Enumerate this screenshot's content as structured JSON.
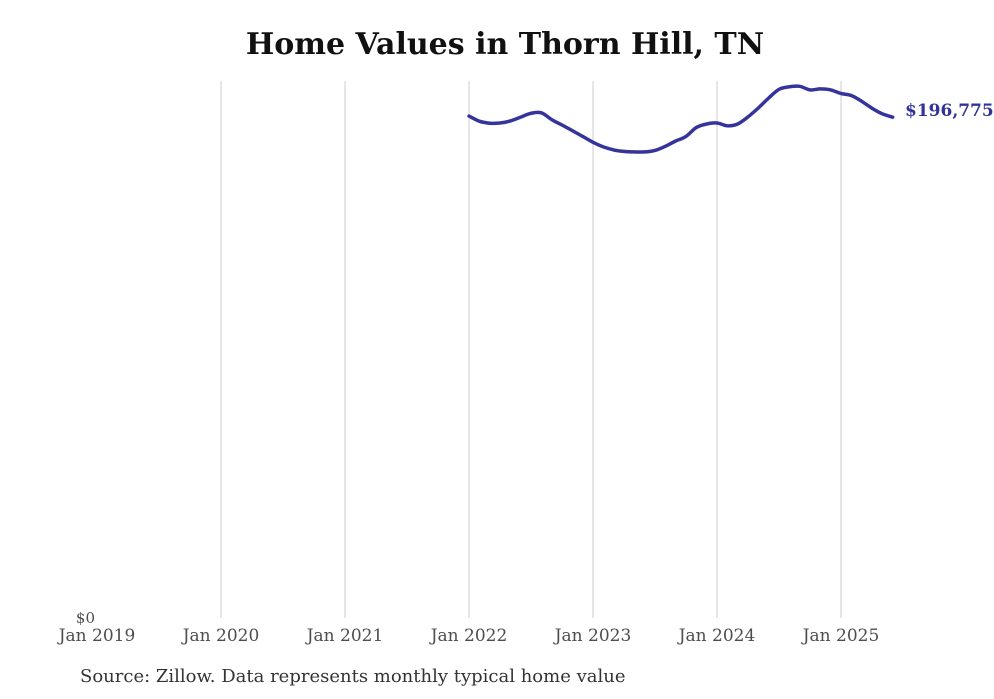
{
  "chart": {
    "title": "Home Values in Thorn Hill, TN",
    "source": "Source: Zillow. Data represents monthly typical home value",
    "y_zero_label": "$0",
    "end_label": "$196,775",
    "colors": {
      "line": "#34349c",
      "grid": "#cccccc",
      "end_label": "#32329b",
      "title": "#111111",
      "tick_text": "#4d4d4d",
      "source_text": "#333333"
    }
  },
  "chart_data": {
    "type": "line",
    "title": "Home Values in Thorn Hill, TN",
    "xlabel": "",
    "ylabel": "",
    "ylim": [
      0,
      211000
    ],
    "grid": "vertical-only",
    "legend": "none",
    "x_ticks": [
      {
        "label": "Jan 2019",
        "gridline": false
      },
      {
        "label": "Jan 2020",
        "gridline": true
      },
      {
        "label": "Jan 2021",
        "gridline": true
      },
      {
        "label": "Jan 2022",
        "gridline": true
      },
      {
        "label": "Jan 2023",
        "gridline": true
      },
      {
        "label": "Jan 2024",
        "gridline": true
      },
      {
        "label": "Jan 2025",
        "gridline": true
      }
    ],
    "series": [
      {
        "name": "Monthly typical home value",
        "start_month": "Jan 2022",
        "end_month": "Jun 2025",
        "values": [
          197200,
          195200,
          194400,
          194500,
          195300,
          196800,
          198300,
          198500,
          195800,
          193700,
          191500,
          189200,
          186900,
          185100,
          183900,
          183300,
          183100,
          183100,
          183700,
          185300,
          187400,
          189200,
          192700,
          194100,
          194500,
          193400,
          194100,
          196900,
          200400,
          204300,
          207700,
          208700,
          208900,
          207500,
          207900,
          207500,
          206100,
          205300,
          203000,
          200300,
          198100,
          196775
        ]
      }
    ],
    "end_value": 196775,
    "end_value_label": "$196,775"
  }
}
